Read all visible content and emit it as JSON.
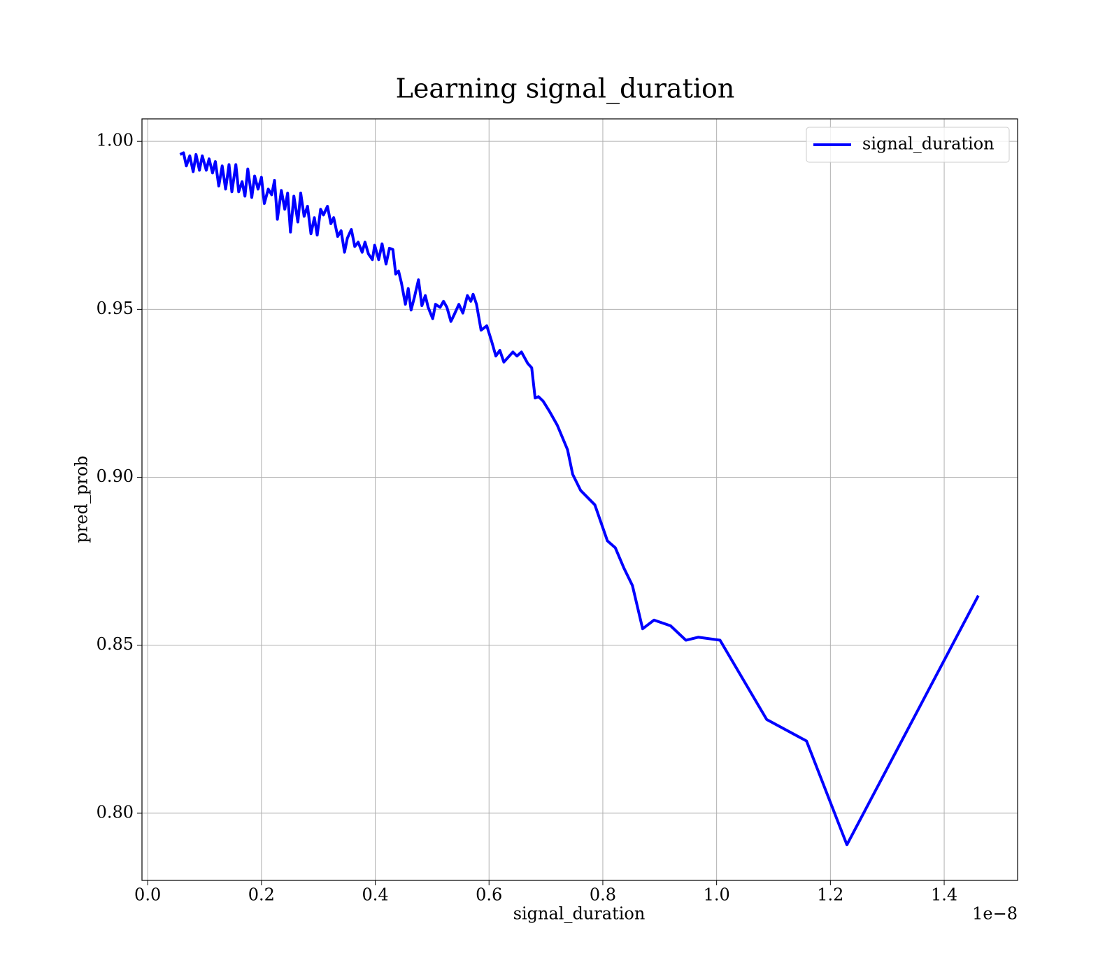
{
  "chart_data": {
    "type": "line",
    "title": "Learning signal_duration",
    "x_label": "signal_duration",
    "y_label": "pred_prob",
    "x_offset_label": "1e−8",
    "xlim": [
      -0.01,
      1.529
    ],
    "ylim": [
      0.78,
      1.0067
    ],
    "xticks": [
      {
        "value": 0,
        "label": "0.0"
      },
      0.2,
      0.4,
      0.6,
      0.8,
      {
        "value": 1,
        "label": "1.0"
      },
      1.2,
      1.4
    ],
    "yticks": [
      {
        "value": 0.8,
        "label": "0.80"
      },
      0.85,
      {
        "value": 0.9,
        "label": "0.90"
      },
      0.95,
      {
        "value": 1,
        "label": "1.00"
      }
    ],
    "grid": true,
    "legend": "upper right",
    "x": [
      0.057,
      0.063,
      0.068,
      0.074,
      0.08,
      0.085,
      0.091,
      0.096,
      0.103,
      0.108,
      0.114,
      0.119,
      0.125,
      0.131,
      0.137,
      0.143,
      0.148,
      0.155,
      0.16,
      0.166,
      0.171,
      0.176,
      0.183,
      0.188,
      0.194,
      0.2,
      0.205,
      0.212,
      0.218,
      0.223,
      0.228,
      0.235,
      0.241,
      0.246,
      0.251,
      0.257,
      0.264,
      0.269,
      0.275,
      0.281,
      0.287,
      0.293,
      0.298,
      0.304,
      0.309,
      0.316,
      0.322,
      0.327,
      0.334,
      0.34,
      0.346,
      0.351,
      0.358,
      0.364,
      0.37,
      0.377,
      0.382,
      0.388,
      0.395,
      0.399,
      0.406,
      0.412,
      0.419,
      0.425,
      0.431,
      0.436,
      0.441,
      0.446,
      0.453,
      0.458,
      0.463,
      0.469,
      0.476,
      0.482,
      0.488,
      0.493,
      0.501,
      0.506,
      0.514,
      0.52,
      0.526,
      0.533,
      0.539,
      0.547,
      0.554,
      0.562,
      0.568,
      0.572,
      0.578,
      0.586,
      0.596,
      0.604,
      0.612,
      0.619,
      0.626,
      0.642,
      0.649,
      0.657,
      0.668,
      0.675,
      0.681,
      0.687,
      0.695,
      0.706,
      0.72,
      0.738,
      0.747,
      0.761,
      0.786,
      0.808,
      0.822,
      0.837,
      0.852,
      0.87,
      0.89,
      0.919,
      0.946,
      0.968,
      1.006,
      1.088,
      1.158,
      1.229,
      1.46
    ],
    "series": [
      {
        "name": "signal_duration",
        "color": "#0000ff",
        "values": [
          0.9961,
          0.9966,
          0.9927,
          0.9957,
          0.991,
          0.9961,
          0.9914,
          0.9957,
          0.9914,
          0.9948,
          0.9906,
          0.994,
          0.9867,
          0.9927,
          0.9858,
          0.9931,
          0.985,
          0.9931,
          0.985,
          0.988,
          0.9837,
          0.9918,
          0.9833,
          0.9897,
          0.9858,
          0.9893,
          0.9815,
          0.9858,
          0.9841,
          0.9884,
          0.9768,
          0.9854,
          0.9798,
          0.9846,
          0.973,
          0.9837,
          0.976,
          0.9846,
          0.9777,
          0.9807,
          0.9725,
          0.9773,
          0.9721,
          0.9798,
          0.9781,
          0.9807,
          0.9755,
          0.9773,
          0.9717,
          0.9734,
          0.967,
          0.9712,
          0.9738,
          0.9687,
          0.97,
          0.967,
          0.97,
          0.9665,
          0.9648,
          0.9691,
          0.9648,
          0.9695,
          0.9635,
          0.9682,
          0.9678,
          0.9605,
          0.9614,
          0.9579,
          0.9515,
          0.9562,
          0.9498,
          0.9537,
          0.9588,
          0.9511,
          0.9541,
          0.9506,
          0.9472,
          0.9515,
          0.9506,
          0.9524,
          0.9506,
          0.9464,
          0.9485,
          0.9515,
          0.9489,
          0.9541,
          0.9524,
          0.9545,
          0.9515,
          0.9438,
          0.9451,
          0.9408,
          0.9361,
          0.9378,
          0.9343,
          0.9373,
          0.9361,
          0.9373,
          0.9339,
          0.9326,
          0.9236,
          0.924,
          0.9227,
          0.9197,
          0.9155,
          0.9082,
          0.9009,
          0.8961,
          0.8918,
          0.8811,
          0.879,
          0.873,
          0.8678,
          0.8549,
          0.8575,
          0.8558,
          0.8515,
          0.8524,
          0.8515,
          0.8279,
          0.8215,
          0.7906,
          0.8648
        ]
      }
    ]
  }
}
